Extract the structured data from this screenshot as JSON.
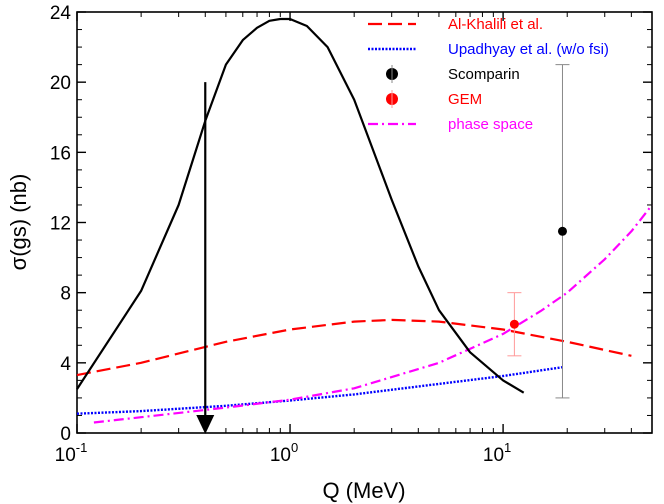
{
  "chart_data": {
    "type": "line",
    "title": "",
    "xlabel": "Q (MeV)",
    "ylabel": "σ(gs) (nb)",
    "xscale": "log",
    "xlim": [
      0.1,
      50
    ],
    "ylim": [
      0,
      24
    ],
    "grid": false,
    "legend_position": "top-right",
    "x_ticks": [
      {
        "value": 0.1,
        "base": "10",
        "exp": "-1"
      },
      {
        "value": 1,
        "base": "10",
        "exp": "0"
      },
      {
        "value": 10,
        "base": "10",
        "exp": "1"
      }
    ],
    "y_ticks": [
      {
        "value": 0,
        "label": "0"
      },
      {
        "value": 4,
        "label": "4"
      },
      {
        "value": 8,
        "label": "8"
      },
      {
        "value": 12,
        "label": "12"
      },
      {
        "value": 16,
        "label": "16"
      },
      {
        "value": 20,
        "label": "20"
      },
      {
        "value": 24,
        "label": "24"
      }
    ],
    "series": [
      {
        "name": "Al-Khalili et al.",
        "style": "dashed",
        "color": "#ff0000",
        "x": [
          0.1,
          0.2,
          0.5,
          1,
          2,
          3,
          5,
          10,
          20,
          40
        ],
        "y": [
          3.3,
          4.0,
          5.2,
          5.9,
          6.35,
          6.45,
          6.35,
          5.9,
          5.2,
          4.4
        ]
      },
      {
        "name": "Upadhyay et al. (w/o fsi)",
        "style": "dotted",
        "color": "#0000ff",
        "x": [
          0.1,
          0.2,
          0.5,
          1,
          2,
          5,
          10,
          19
        ],
        "y": [
          1.1,
          1.25,
          1.55,
          1.85,
          2.2,
          2.8,
          3.25,
          3.75
        ]
      },
      {
        "name": "phase space",
        "style": "dashdot",
        "color": "#ff00ff",
        "x": [
          0.12,
          0.2,
          0.5,
          1,
          2,
          5,
          10,
          15,
          20,
          30,
          40,
          50
        ],
        "y": [
          0.6,
          0.9,
          1.45,
          1.9,
          2.55,
          4.0,
          5.65,
          6.95,
          8.0,
          9.9,
          11.5,
          13.0
        ]
      },
      {
        "name": "",
        "style": "solid",
        "color": "#000000",
        "x": [
          0.1,
          0.2,
          0.3,
          0.4,
          0.5,
          0.6,
          0.7,
          0.8,
          0.9,
          1.0,
          1.2,
          1.5,
          2,
          3,
          4,
          5,
          7,
          10,
          12.5
        ],
        "y": [
          2.5,
          8.1,
          13.0,
          17.8,
          21.0,
          22.4,
          23.1,
          23.5,
          23.6,
          23.6,
          23.2,
          22.0,
          19.0,
          13.3,
          9.5,
          7.0,
          4.6,
          3.0,
          2.3
        ]
      }
    ],
    "points": [
      {
        "name": "Scomparin",
        "color": "#000000",
        "x": 19,
        "y": 11.5,
        "yerr_low": 2.0,
        "yerr_high": 21.0
      },
      {
        "name": "GEM",
        "color": "#ff0000",
        "x": 11.3,
        "y": 6.2,
        "yerr_low": 4.4,
        "yerr_high": 8.0
      }
    ],
    "arrow": {
      "x": 0.4,
      "y_from": 20,
      "y_to": 0
    },
    "legend": [
      {
        "label": "Al-Khalili et al.",
        "kind": "dashed",
        "color": "#ff0000"
      },
      {
        "label": "Upadhyay et al. (w/o fsi)",
        "kind": "dotted",
        "color": "#0000ff"
      },
      {
        "label": "Scomparin",
        "kind": "marker",
        "color": "#000000"
      },
      {
        "label": "GEM",
        "kind": "marker",
        "color": "#ff0000"
      },
      {
        "label": "phase space",
        "kind": "dashdot",
        "color": "#ff00ff"
      }
    ]
  }
}
